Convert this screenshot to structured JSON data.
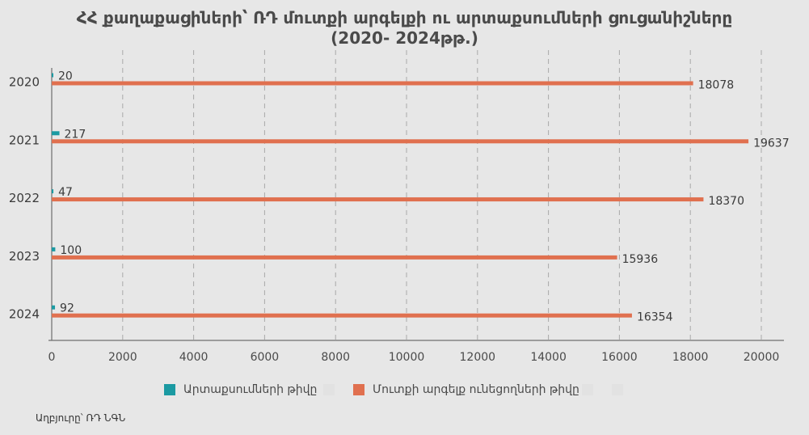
{
  "title_line1": "ՀՀ քաղաքացիների՝ ՌԴ մուտքի արգելքի ու արտաքսումների ցուցանիշները",
  "title_line2": "(2020- 2024թթ.)",
  "source": "Աղբյուրը՝ ՌԴ ՆԳՆ",
  "colors": {
    "background": "#e7e7e7",
    "deportations": "#1b9aa2",
    "entry_ban": "#e0704f",
    "grid": "#a9a9a9",
    "axis": "#6f6f6f"
  },
  "chart_data": {
    "type": "bar",
    "orientation": "horizontal",
    "categories": [
      "2020",
      "2021",
      "2022",
      "2023",
      "2024"
    ],
    "series": [
      {
        "name": "Արտաքսումների թիվը",
        "values": [
          20,
          217,
          47,
          100,
          92
        ]
      },
      {
        "name": "Մուտքի արգելք ունեցողների թիվը",
        "values": [
          18078,
          19637,
          18370,
          15936,
          16354
        ]
      }
    ],
    "xlim": [
      0,
      20000
    ],
    "x_ticks": [
      "0",
      "2000",
      "4000",
      "6000",
      "8000",
      "10000",
      "12000",
      "14000",
      "16000",
      "18000",
      "20000"
    ],
    "grid": "vertical dashed",
    "legend_position": "bottom"
  }
}
